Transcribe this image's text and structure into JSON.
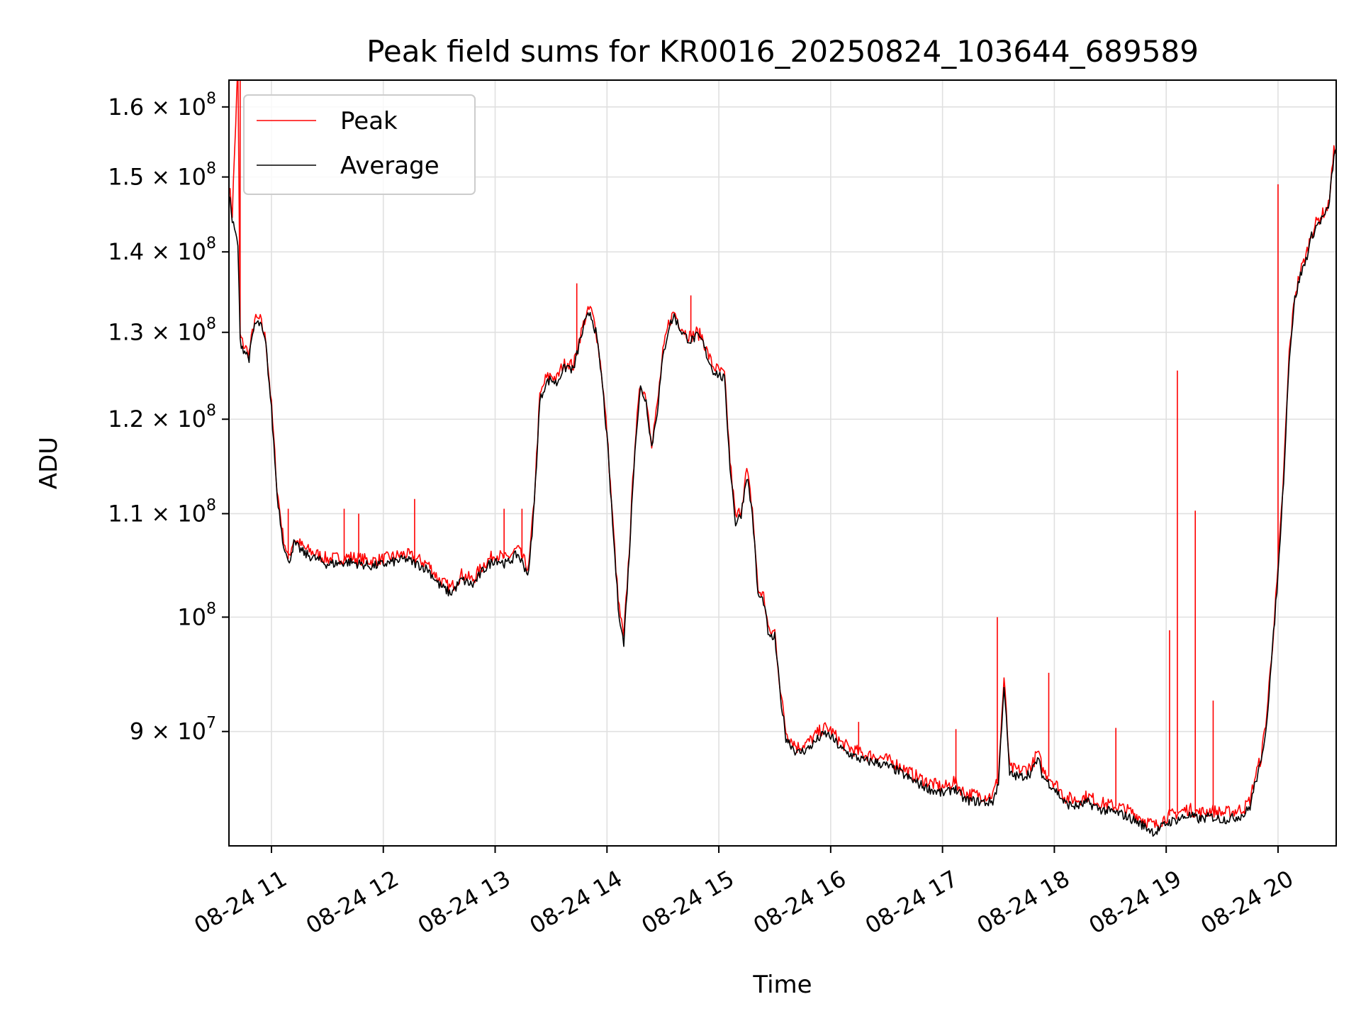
{
  "chart_data": {
    "type": "line",
    "title": "Peak field sums for KR0016_20250824_103644_689589",
    "xlabel": "Time",
    "ylabel": "ADU",
    "yscale": "log",
    "ylim": [
      81000000,
      164000000
    ],
    "xlim_hours": [
      10.62,
      20.52
    ],
    "grid": true,
    "legend_position": "upper-left",
    "x_ticks": [
      {
        "hour": 11,
        "label": "08-24 11"
      },
      {
        "hour": 12,
        "label": "08-24 12"
      },
      {
        "hour": 13,
        "label": "08-24 13"
      },
      {
        "hour": 14,
        "label": "08-24 14"
      },
      {
        "hour": 15,
        "label": "08-24 15"
      },
      {
        "hour": 16,
        "label": "08-24 16"
      },
      {
        "hour": 17,
        "label": "08-24 17"
      },
      {
        "hour": 18,
        "label": "08-24 18"
      },
      {
        "hour": 19,
        "label": "08-24 19"
      },
      {
        "hour": 20,
        "label": "08-24 20"
      }
    ],
    "y_ticks": [
      {
        "value": 90000000,
        "mant": "9",
        "sep": " × 10",
        "exp": "7"
      },
      {
        "value": 100000000,
        "mant": "",
        "sep": "10",
        "exp": "8"
      },
      {
        "value": 110000000,
        "mant": "1.1",
        "sep": " × 10",
        "exp": "8"
      },
      {
        "value": 120000000,
        "mant": "1.2",
        "sep": " × 10",
        "exp": "8"
      },
      {
        "value": 130000000,
        "mant": "1.3",
        "sep": " × 10",
        "exp": "8"
      },
      {
        "value": 140000000,
        "mant": "1.4",
        "sep": " × 10",
        "exp": "8"
      },
      {
        "value": 150000000,
        "mant": "1.5",
        "sep": " × 10",
        "exp": "8"
      },
      {
        "value": 160000000,
        "mant": "1.6",
        "sep": " × 10",
        "exp": "8"
      }
    ],
    "series": [
      {
        "name": "Average",
        "color": "#000000",
        "x": [
          10.62,
          10.65,
          10.7,
          10.72,
          10.75,
          10.8,
          10.85,
          10.9,
          10.95,
          11.0,
          11.05,
          11.1,
          11.15,
          11.2,
          11.3,
          11.5,
          11.7,
          11.9,
          12.0,
          12.2,
          12.4,
          12.5,
          12.6,
          12.65,
          12.7,
          12.8,
          12.9,
          13.0,
          13.1,
          13.2,
          13.3,
          13.35,
          13.4,
          13.45,
          13.5,
          13.55,
          13.6,
          13.65,
          13.7,
          13.75,
          13.8,
          13.85,
          13.9,
          13.95,
          14.0,
          14.05,
          14.1,
          14.15,
          14.2,
          14.25,
          14.3,
          14.35,
          14.4,
          14.45,
          14.5,
          14.55,
          14.6,
          14.65,
          14.7,
          14.75,
          14.8,
          14.85,
          14.9,
          14.95,
          15.0,
          15.05,
          15.1,
          15.15,
          15.2,
          15.25,
          15.3,
          15.35,
          15.4,
          15.45,
          15.5,
          15.55,
          15.6,
          15.7,
          15.8,
          15.9,
          15.95,
          16.0,
          16.1,
          16.2,
          16.3,
          16.4,
          16.5,
          16.6,
          16.7,
          16.8,
          16.9,
          17.0,
          17.05,
          17.1,
          17.2,
          17.3,
          17.4,
          17.45,
          17.5,
          17.55,
          17.6,
          17.7,
          17.8,
          17.85,
          17.9,
          18.0,
          18.1,
          18.2,
          18.3,
          18.4,
          18.5,
          18.6,
          18.7,
          18.8,
          18.9,
          19.0,
          19.1,
          19.2,
          19.3,
          19.4,
          19.5,
          19.6,
          19.7,
          19.75,
          19.8,
          19.85,
          19.9,
          19.95,
          20.0,
          20.05,
          20.1,
          20.15,
          20.2,
          20.25,
          20.3,
          20.35,
          20.4,
          20.45,
          20.5,
          20.52
        ],
        "y": [
          148000000,
          144000000,
          141000000,
          129000000,
          128000000,
          127000000,
          131000000,
          131000000,
          128500000,
          121000000,
          112000000,
          107500000,
          105000000,
          107000000,
          106000000,
          105000000,
          105200000,
          104800000,
          105000000,
          105500000,
          104500000,
          103000000,
          102200000,
          102800000,
          103500000,
          103000000,
          104500000,
          105500000,
          105000000,
          106000000,
          104000000,
          111000000,
          122000000,
          124000000,
          124500000,
          124000000,
          125500000,
          126000000,
          125500000,
          128500000,
          131000000,
          132500000,
          130000000,
          125000000,
          118000000,
          109000000,
          101000000,
          97500000,
          106000000,
          117000000,
          123500000,
          122000000,
          117000000,
          121000000,
          127000000,
          130500000,
          132000000,
          130500000,
          129500000,
          129000000,
          129500000,
          129000000,
          127000000,
          125500000,
          125000000,
          124500000,
          115000000,
          109000000,
          110000000,
          114000000,
          110000000,
          102000000,
          101500000,
          98000000,
          98200000,
          93000000,
          89500000,
          88200000,
          88600000,
          89500000,
          89800000,
          89600000,
          88500000,
          88000000,
          87600000,
          87500000,
          87200000,
          86800000,
          86200000,
          85700000,
          85300000,
          85000000,
          85100000,
          85500000,
          84500000,
          84400000,
          84300000,
          84400000,
          85800000,
          94000000,
          86500000,
          86300000,
          86700000,
          87800000,
          86300000,
          85400000,
          84200000,
          84000000,
          84300000,
          83800000,
          83600000,
          83400000,
          83000000,
          82500000,
          82000000,
          82700000,
          83000000,
          83300000,
          83000000,
          83200000,
          83000000,
          83100000,
          83400000,
          84000000,
          86000000,
          87400000,
          91000000,
          97000000,
          104000000,
          113500000,
          127000000,
          134000000,
          137000000,
          139000000,
          142000000,
          143500000,
          144500000,
          145500000,
          153000000,
          153500000
        ]
      },
      {
        "name": "Peak",
        "color": "#ff0000",
        "x": [
          10.62,
          10.65,
          10.7,
          10.72,
          10.75,
          10.8,
          10.85,
          10.9,
          10.95,
          11.0,
          11.05,
          11.1,
          11.15,
          11.2,
          11.3,
          11.5,
          11.7,
          11.9,
          12.0,
          12.2,
          12.4,
          12.5,
          12.6,
          12.65,
          12.7,
          12.8,
          12.9,
          13.0,
          13.1,
          13.2,
          13.3,
          13.35,
          13.4,
          13.45,
          13.5,
          13.55,
          13.6,
          13.65,
          13.7,
          13.75,
          13.8,
          13.85,
          13.9,
          13.95,
          14.0,
          14.05,
          14.1,
          14.15,
          14.2,
          14.25,
          14.3,
          14.35,
          14.4,
          14.45,
          14.5,
          14.55,
          14.6,
          14.65,
          14.7,
          14.75,
          14.8,
          14.85,
          14.9,
          14.95,
          15.0,
          15.05,
          15.1,
          15.15,
          15.2,
          15.25,
          15.3,
          15.35,
          15.4,
          15.45,
          15.5,
          15.55,
          15.6,
          15.7,
          15.8,
          15.9,
          15.95,
          16.0,
          16.1,
          16.2,
          16.3,
          16.4,
          16.5,
          16.6,
          16.7,
          16.8,
          16.9,
          17.0,
          17.05,
          17.1,
          17.2,
          17.3,
          17.4,
          17.45,
          17.5,
          17.55,
          17.6,
          17.7,
          17.8,
          17.85,
          17.9,
          18.0,
          18.1,
          18.2,
          18.3,
          18.4,
          18.5,
          18.6,
          18.7,
          18.8,
          18.9,
          19.0,
          19.1,
          19.2,
          19.3,
          19.4,
          19.5,
          19.6,
          19.7,
          19.75,
          19.8,
          19.85,
          19.9,
          19.95,
          20.0,
          20.05,
          20.1,
          20.15,
          20.2,
          20.25,
          20.3,
          20.35,
          20.4,
          20.45,
          20.5,
          20.52
        ],
        "y": [
          149000000,
          145000000,
          166000000,
          129500000,
          128500000,
          127500000,
          131500000,
          131500000,
          129000000,
          121500000,
          112500000,
          108000000,
          105500000,
          107500000,
          106500000,
          105500000,
          105700000,
          105300000,
          105500000,
          106000000,
          105000000,
          103500000,
          102700000,
          103300000,
          104000000,
          103500000,
          105000000,
          106000000,
          105500000,
          106500000,
          104500000,
          111500000,
          122500000,
          124500000,
          125000000,
          124500000,
          126000000,
          126500000,
          126000000,
          129000000,
          131500000,
          133000000,
          130500000,
          125500000,
          118500000,
          109500000,
          101500000,
          98000000,
          106500000,
          117500000,
          124000000,
          122500000,
          117500000,
          121500000,
          127500000,
          131000000,
          132500000,
          131000000,
          130000000,
          129500000,
          130000000,
          129500000,
          127500000,
          126000000,
          125500000,
          125000000,
          115500000,
          109500000,
          110500000,
          114500000,
          110500000,
          102500000,
          102000000,
          98500000,
          98700000,
          93500000,
          90000000,
          88700000,
          89100000,
          90000000,
          90300000,
          90100000,
          89000000,
          88500000,
          88100000,
          88000000,
          87700000,
          87300000,
          86700000,
          86200000,
          85800000,
          85500000,
          85600000,
          86000000,
          85000000,
          84900000,
          84800000,
          84900000,
          86300000,
          94500000,
          87000000,
          86800000,
          87200000,
          88300000,
          86800000,
          85900000,
          84700000,
          84500000,
          84800000,
          84300000,
          84100000,
          83900000,
          83500000,
          83000000,
          82500000,
          83200000,
          83500000,
          83800000,
          83500000,
          83700000,
          83500000,
          83600000,
          83900000,
          84500000,
          86500000,
          87900000,
          91500000,
          97500000,
          104500000,
          114000000,
          127500000,
          134500000,
          137500000,
          139500000,
          142500000,
          144000000,
          145000000,
          146000000,
          153500000,
          154000000
        ]
      }
    ],
    "peak_spikes": [
      {
        "x": 10.72,
        "y": 166000000
      },
      {
        "x": 11.15,
        "y": 110500000
      },
      {
        "x": 11.65,
        "y": 110500000
      },
      {
        "x": 11.78,
        "y": 110000000
      },
      {
        "x": 12.28,
        "y": 111500000
      },
      {
        "x": 13.08,
        "y": 110500000
      },
      {
        "x": 13.24,
        "y": 110500000
      },
      {
        "x": 13.73,
        "y": 136000000
      },
      {
        "x": 14.75,
        "y": 134500000
      },
      {
        "x": 16.25,
        "y": 90800000
      },
      {
        "x": 17.12,
        "y": 90200000
      },
      {
        "x": 17.49,
        "y": 100000000
      },
      {
        "x": 17.95,
        "y": 95000000
      },
      {
        "x": 18.55,
        "y": 90300000
      },
      {
        "x": 19.03,
        "y": 98800000
      },
      {
        "x": 19.1,
        "y": 125500000
      },
      {
        "x": 19.26,
        "y": 110300000
      },
      {
        "x": 19.42,
        "y": 92600000
      },
      {
        "x": 20.0,
        "y": 149000000
      }
    ]
  },
  "legend": {
    "items": [
      {
        "label": "Peak",
        "color": "#ff0000"
      },
      {
        "label": "Average",
        "color": "#000000"
      }
    ]
  }
}
